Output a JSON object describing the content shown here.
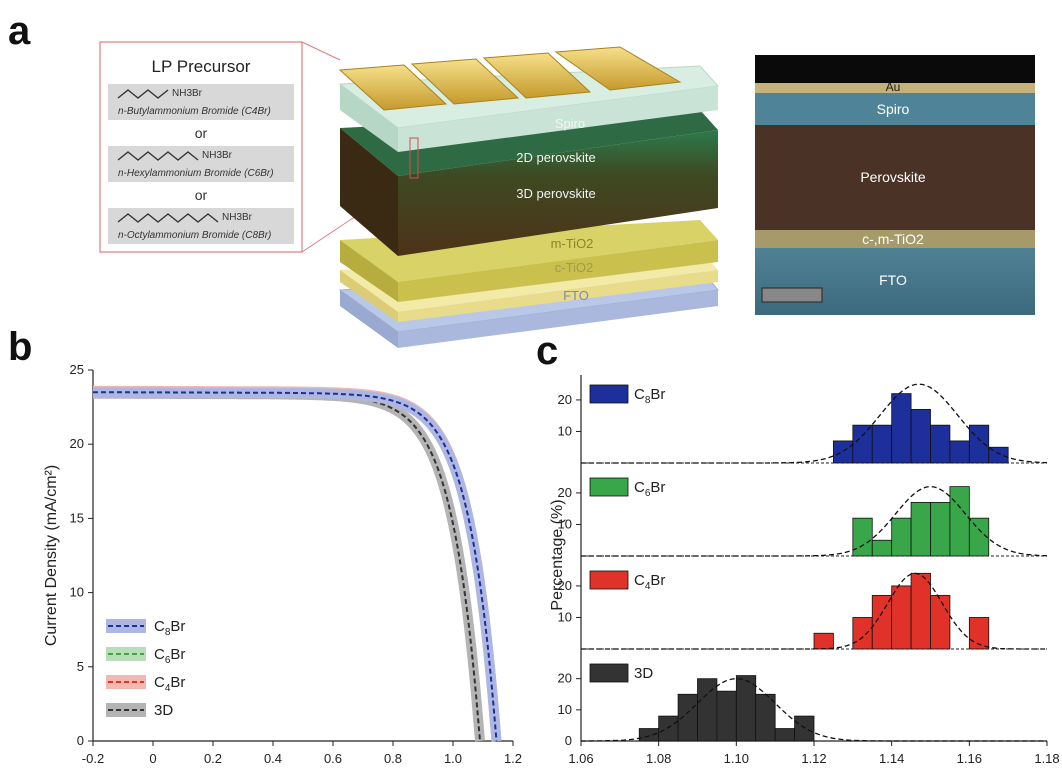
{
  "panel_labels": {
    "a": "a",
    "b": "b",
    "c": "c"
  },
  "precursor": {
    "title": "LP Precursor",
    "or_label": "or",
    "molecules": [
      {
        "formula": "NH3Br",
        "name": "n-Butylammonium Bromide (C4Br)"
      },
      {
        "formula": "NH3Br",
        "name": "n-Hexylammonium Bromide (C6Br)"
      },
      {
        "formula": "NH3Br",
        "name": "n-Octylammonium Bromide (C8Br)"
      }
    ]
  },
  "device": {
    "layers": [
      "Spiro",
      "2D perovskite",
      "3D perovskite",
      "m-TiO2",
      "c-TiO2",
      "FTO"
    ]
  },
  "sem": {
    "labels": [
      "Au",
      "Spiro",
      "Perovskite",
      "c-,m-TiO2",
      "FTO"
    ]
  },
  "colors": {
    "C8Br": "#1c2f9a",
    "C6Br": "#3aa64a",
    "C4Br": "#e03228",
    "3D": "#333333"
  },
  "chart_data": [
    {
      "type": "line",
      "panel": "b",
      "ylabel": "Current Density (mA/cm²)",
      "xlim": [
        -0.2,
        1.2
      ],
      "ylim": [
        0,
        25
      ],
      "x_ticks": [
        "-0.2",
        "0",
        "0.2",
        "0.4",
        "0.6",
        "0.8",
        "1.0",
        "1.2"
      ],
      "y_ticks": [
        "0",
        "5",
        "10",
        "15",
        "20",
        "25"
      ],
      "legend_position": "bottom-left",
      "series": [
        {
          "name": "C8Br",
          "jsc": 23.5,
          "voc": 1.145,
          "shape": 11
        },
        {
          "name": "C6Br",
          "jsc": 23.5,
          "voc": 1.145,
          "shape": 11
        },
        {
          "name": "C4Br",
          "jsc": 23.6,
          "voc": 1.145,
          "shape": 11
        },
        {
          "name": "3D",
          "jsc": 23.4,
          "voc": 1.09,
          "shape": 11
        }
      ]
    },
    {
      "type": "bar",
      "panel": "c",
      "ylabel": "Percentage (%)",
      "xlim": [
        1.06,
        1.18
      ],
      "x_ticks": [
        "1.06",
        "1.08",
        "1.10",
        "1.12",
        "1.14",
        "1.16",
        "1.18"
      ],
      "y_ticks": [
        "10",
        "20"
      ],
      "bin_width": 0.005,
      "legend_position": "top-left",
      "series": [
        {
          "name": "C8Br",
          "bin_left": [
            1.125,
            1.13,
            1.135,
            1.14,
            1.145,
            1.15,
            1.155,
            1.16,
            1.165
          ],
          "values": [
            7,
            12,
            12,
            22,
            17,
            12,
            7,
            12,
            5
          ],
          "fit": {
            "mean": 1.147,
            "sd": 0.01,
            "peak": 25
          }
        },
        {
          "name": "C6Br",
          "bin_left": [
            1.13,
            1.135,
            1.14,
            1.145,
            1.15,
            1.155,
            1.16
          ],
          "values": [
            12,
            5,
            12,
            17,
            17,
            22,
            12
          ],
          "fit": {
            "mean": 1.15,
            "sd": 0.009,
            "peak": 22
          }
        },
        {
          "name": "C4Br",
          "bin_left": [
            1.12,
            1.13,
            1.135,
            1.14,
            1.145,
            1.15,
            1.16
          ],
          "values": [
            5,
            10,
            17,
            20,
            24,
            17,
            10
          ],
          "fit": {
            "mean": 1.146,
            "sd": 0.007,
            "peak": 24
          }
        },
        {
          "name": "3D",
          "bin_left": [
            1.075,
            1.08,
            1.085,
            1.09,
            1.095,
            1.1,
            1.105,
            1.11,
            1.115
          ],
          "values": [
            4,
            8,
            15,
            20,
            16,
            21,
            15,
            4,
            8
          ],
          "fit": {
            "mean": 1.1,
            "sd": 0.01,
            "peak": 20
          }
        }
      ]
    }
  ]
}
